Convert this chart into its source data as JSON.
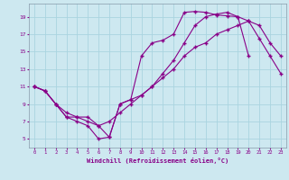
{
  "xlabel": "Windchill (Refroidissement éolien,°C)",
  "background_color": "#cde8f0",
  "line_color": "#880088",
  "grid_color": "#aad4e0",
  "xlim": [
    -0.5,
    23.5
  ],
  "ylim": [
    4,
    20.5
  ],
  "xticks": [
    0,
    1,
    2,
    3,
    4,
    5,
    6,
    7,
    8,
    9,
    10,
    11,
    12,
    13,
    14,
    15,
    16,
    17,
    18,
    19,
    20,
    21,
    22,
    23
  ],
  "yticks": [
    5,
    7,
    9,
    11,
    13,
    15,
    17,
    19
  ],
  "line1_x": [
    0,
    1,
    2,
    3,
    4,
    5,
    6,
    7,
    8,
    9,
    10,
    11,
    12,
    13,
    14,
    15,
    16,
    17,
    18,
    19,
    20,
    21
  ],
  "line1_y": [
    11,
    10.5,
    9,
    7.5,
    7,
    6.5,
    5,
    5.2,
    9,
    9.5,
    14.5,
    16,
    16.3,
    17,
    19.5,
    19.6,
    19.5,
    19.2,
    19.1,
    19.0,
    14.5,
    null
  ],
  "line2_x": [
    0,
    1,
    2,
    3,
    4,
    5,
    6,
    7,
    8,
    9,
    10,
    11,
    12,
    13,
    14,
    15,
    16,
    17,
    18,
    19,
    20,
    21,
    22,
    23
  ],
  "line2_y": [
    11,
    10.5,
    9,
    7.5,
    7.5,
    7,
    6.5,
    7,
    8,
    9,
    10,
    11,
    12,
    13,
    14.5,
    15.5,
    16,
    17,
    17.5,
    18,
    18.5,
    18,
    16,
    14.5
  ],
  "line3_x": [
    0,
    1,
    2,
    3,
    4,
    5,
    6,
    7,
    8,
    9,
    10,
    11,
    12,
    13,
    14,
    15,
    16,
    17,
    18,
    19,
    20,
    21,
    22,
    23
  ],
  "line3_y": [
    11,
    10.5,
    9,
    8,
    7.5,
    7.5,
    6.5,
    5.2,
    9,
    9.5,
    10,
    11,
    12.5,
    14,
    16,
    18,
    19,
    19.3,
    19.5,
    19.0,
    18.5,
    16.5,
    14.5,
    12.5
  ]
}
